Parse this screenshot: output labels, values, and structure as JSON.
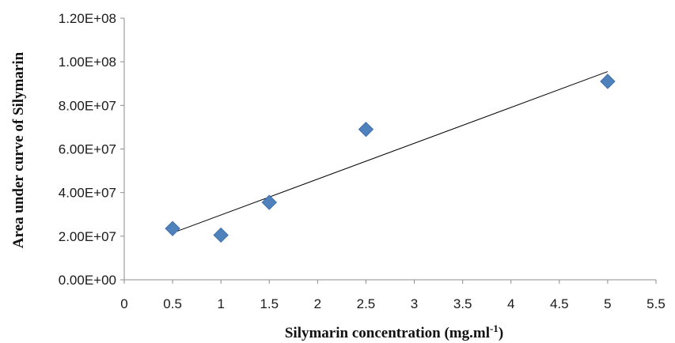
{
  "chart_data": {
    "type": "scatter",
    "title": "",
    "xlabel": "Silymarin  concentration (mg.ml",
    "xlabel_sup": "-1",
    "xlabel_close": ")",
    "ylabel": "Area under curve of Silymarin",
    "xlim": [
      0,
      5.5
    ],
    "ylim": [
      0,
      120000000
    ],
    "x_ticks": [
      0,
      0.5,
      1,
      1.5,
      2,
      2.5,
      3,
      3.5,
      4,
      4.5,
      5,
      5.5
    ],
    "x_tick_labels": [
      "0",
      "0.5",
      "1",
      "1.5",
      "2",
      "2.5",
      "3",
      "3.5",
      "4",
      "4.5",
      "5",
      "5.5"
    ],
    "y_ticks": [
      0,
      20000000,
      40000000,
      60000000,
      80000000,
      100000000,
      120000000
    ],
    "y_tick_labels": [
      "0.00E+00",
      "2.00E+07",
      "4.00E+07",
      "6.00E+07",
      "8.00E+07",
      "1.00E+08",
      "1.20E+08"
    ],
    "grid": false,
    "legend": "none",
    "series": [
      {
        "x": [
          0.5,
          1,
          1.5,
          2.5,
          5
        ],
        "y": [
          23500000,
          20500000,
          35500000,
          69000000,
          91000000
        ],
        "color": "#4f81bd",
        "marker": "diamond"
      }
    ],
    "trendline": {
      "type": "linear",
      "x": [
        0.5,
        5
      ],
      "y": [
        21500000,
        95500000
      ],
      "color": "#000000"
    }
  }
}
